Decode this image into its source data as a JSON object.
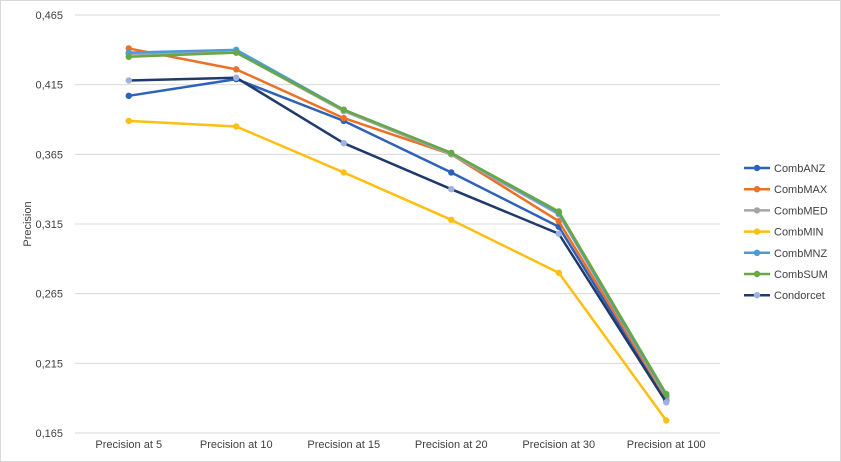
{
  "chart_data": {
    "type": "line",
    "title": "",
    "xlabel": "",
    "ylabel": "Precision",
    "ylim": [
      0.165,
      0.465
    ],
    "yticks": [
      "0,465",
      "0,415",
      "0,365",
      "0,315",
      "0,265",
      "0,215",
      "0,165"
    ],
    "ytick_values": [
      0.465,
      0.415,
      0.365,
      0.315,
      0.265,
      0.215,
      0.165
    ],
    "categories": [
      "Precision at 5",
      "Precision at 10",
      "Precision at 15",
      "Precision at 20",
      "Precision at 30",
      "Precision at 100"
    ],
    "grid": true,
    "legend_position": "right",
    "series": [
      {
        "name": "CombANZ",
        "color": "#2e62b8",
        "values": [
          0.407,
          0.419,
          0.389,
          0.352,
          0.313,
          0.188
        ]
      },
      {
        "name": "CombMAX",
        "color": "#ea7125",
        "values": [
          0.441,
          0.426,
          0.391,
          0.365,
          0.317,
          0.19
        ]
      },
      {
        "name": "CombMED",
        "color": "#a5a5a5",
        "values": [
          0.437,
          0.438,
          0.396,
          0.365,
          0.322,
          0.191
        ]
      },
      {
        "name": "CombMIN",
        "color": "#fdbf12",
        "values": [
          0.389,
          0.385,
          0.352,
          0.318,
          0.28,
          0.174
        ]
      },
      {
        "name": "CombMNZ",
        "color": "#4a9bd8",
        "values": [
          0.438,
          0.44,
          0.397,
          0.366,
          0.323,
          0.192
        ]
      },
      {
        "name": "CombSUM",
        "color": "#65a844",
        "values": [
          0.435,
          0.438,
          0.397,
          0.366,
          0.324,
          0.193
        ]
      },
      {
        "name": "Condorcet",
        "color": "#1f3a6b",
        "marker_color": "#9eb1e0",
        "values": [
          0.418,
          0.42,
          0.373,
          0.34,
          0.308,
          0.187
        ]
      }
    ]
  }
}
